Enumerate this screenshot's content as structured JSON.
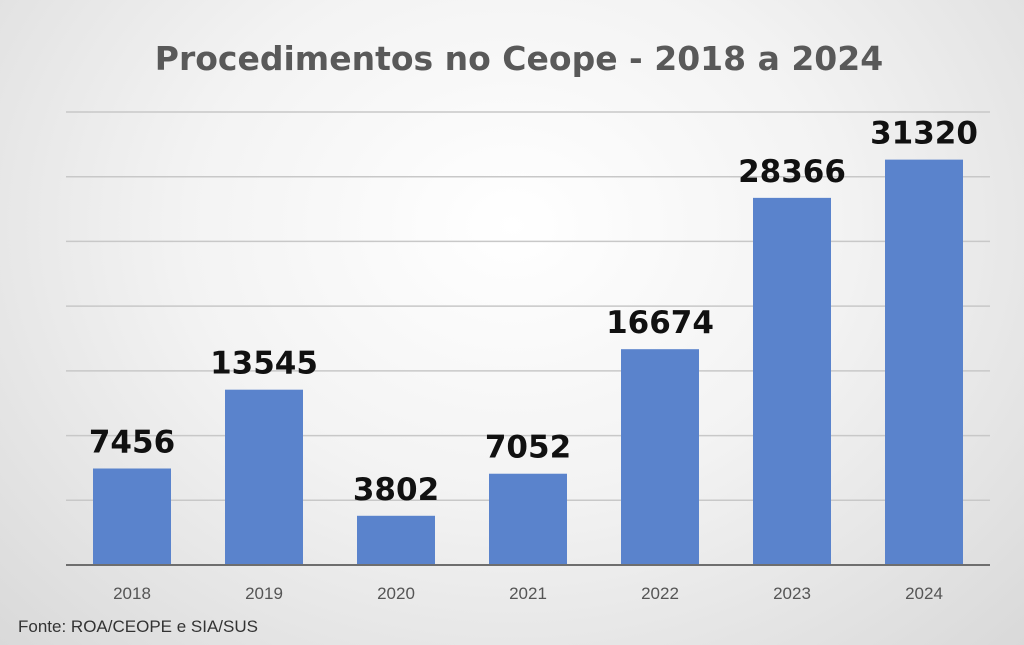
{
  "chart_data": {
    "type": "bar",
    "title": "Procedimentos no Ceope - 2018 a 2024",
    "categories": [
      "2018",
      "2019",
      "2020",
      "2021",
      "2022",
      "2023",
      "2024"
    ],
    "values": [
      7456,
      13545,
      3802,
      7052,
      16674,
      28366,
      31320
    ],
    "ylim": [
      0,
      35000
    ],
    "grid": true,
    "bar_color": "#5a83cc",
    "source_note": "Fonte: ROA/CEOPE e SIA/SUS"
  }
}
